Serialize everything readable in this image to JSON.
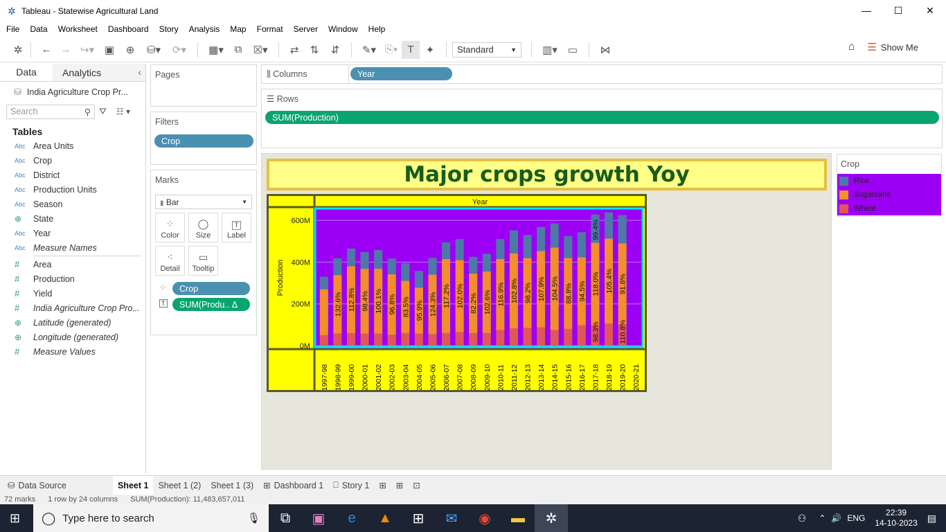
{
  "window": {
    "title": "Tableau - Statewise Agricultural Land"
  },
  "menu": [
    "File",
    "Data",
    "Worksheet",
    "Dashboard",
    "Story",
    "Analysis",
    "Map",
    "Format",
    "Server",
    "Window",
    "Help"
  ],
  "toolbar": {
    "fit_select": "Standard",
    "show_me": "Show Me"
  },
  "datapane": {
    "tabs": [
      "Data",
      "Analytics"
    ],
    "datasource": "India Agriculture Crop Pr...",
    "search_placeholder": "Search",
    "tables_heading": "Tables",
    "dimensions": [
      {
        "type": "Abc",
        "name": "Area Units"
      },
      {
        "type": "Abc",
        "name": "Crop"
      },
      {
        "type": "Abc",
        "name": "District"
      },
      {
        "type": "Abc",
        "name": "Production Units"
      },
      {
        "type": "Abc",
        "name": "Season"
      },
      {
        "type": "globe",
        "name": "State"
      },
      {
        "type": "Abc",
        "name": "Year"
      },
      {
        "type": "Abc",
        "name": "Measure Names"
      }
    ],
    "measures": [
      {
        "type": "#",
        "name": "Area"
      },
      {
        "type": "#",
        "name": "Production"
      },
      {
        "type": "#",
        "name": "Yield"
      },
      {
        "type": "#",
        "name": "India Agriculture Crop Pro..."
      },
      {
        "type": "globe",
        "name": "Latitude (generated)"
      },
      {
        "type": "globe",
        "name": "Longitude (generated)"
      },
      {
        "type": "#",
        "name": "Measure Values"
      }
    ]
  },
  "cards": {
    "pages": "Pages",
    "filters": "Filters",
    "filter_pill": "Crop",
    "marks": "Marks",
    "mark_type": "Bar",
    "mark_buttons": [
      "Color",
      "Size",
      "Label",
      "Detail",
      "Tooltip"
    ],
    "mark_pills": [
      "Crop",
      "SUM(Produ.. Δ"
    ]
  },
  "shelves": {
    "columns_label": "Columns",
    "columns_pill": "Year",
    "rows_label": "Rows",
    "rows_pill": "SUM(Production)"
  },
  "legend": {
    "title": "Crop",
    "items": [
      {
        "name": "Rice",
        "color": "#4e79a7"
      },
      {
        "name": "Sugarcane",
        "color": "#f28e2b"
      },
      {
        "name": "Wheat",
        "color": "#e15759"
      }
    ]
  },
  "colors": {
    "plot_bg": "#9b00f5",
    "frame_bg": "#ffff00",
    "plot_border": "#00e5ff",
    "title_color": "#1a5c1a"
  },
  "chart_data": {
    "type": "bar",
    "title": "Major crops growth Yoy",
    "xlabel": "Year",
    "ylabel": "Production",
    "ylim": [
      0,
      650
    ],
    "yticks": [
      "0M",
      "200M",
      "400M",
      "600M"
    ],
    "categories": [
      "1997-98",
      "1998-99",
      "1999-00",
      "2000-01",
      "2001-02",
      "2002-03",
      "2003-04",
      "2004-05",
      "2005-06",
      "2006-07",
      "2007-08",
      "2008-09",
      "2009-10",
      "2010-11",
      "2011-12",
      "2012-13",
      "2013-14",
      "2014-15",
      "2015-16",
      "2016-17",
      "2017-18",
      "2018-19",
      "2019-20",
      "2020-21"
    ],
    "series": [
      {
        "name": "Wheat",
        "values": [
          50,
          58,
          60,
          58,
          58,
          52,
          60,
          58,
          55,
          60,
          65,
          60,
          60,
          75,
          82,
          85,
          88,
          75,
          80,
          98,
          98,
          105,
          100,
          0
        ]
      },
      {
        "name": "Sugarcane",
        "values": [
          220,
          280,
          320,
          310,
          310,
          290,
          250,
          220,
          285,
          355,
          345,
          285,
          295,
          340,
          360,
          335,
          365,
          395,
          340,
          325,
          395,
          408,
          390,
          0
        ]
      },
      {
        "name": "Rice",
        "values": [
          60,
          80,
          85,
          80,
          90,
          75,
          85,
          80,
          80,
          80,
          100,
          80,
          85,
          95,
          110,
          110,
          115,
          115,
          105,
          120,
          135,
          125,
          135,
          0
        ]
      }
    ],
    "labels": [
      "",
      "132.6%",
      "112.8%",
      "98.4%",
      "100.1%",
      "96.8%",
      "83.5%",
      "95.9%",
      "124.3%",
      "117.2%",
      "102.0%",
      "82.2%",
      "102.6%",
      "116.9%",
      "102.8%",
      "98.2%",
      "107.9%",
      "104.5%",
      "88.8%",
      "94.5%",
      "118.0%",
      "105.4%",
      "91.8%",
      ""
    ],
    "top_labels": {
      "20": "99.4%"
    },
    "bottom_labels": {
      "20": "98.3%",
      "22": "110.8%"
    }
  },
  "sheet_tabs": [
    "Data Source",
    "Sheet 1",
    "Sheet 1 (2)",
    "Sheet 1 (3)",
    "Dashboard 1",
    "Story 1"
  ],
  "status": [
    "72 marks",
    "1 row by 24 columns",
    "SUM(Production): 11,483,657,011"
  ],
  "taskbar": {
    "search": "Type here to search",
    "lang": "ENG",
    "time": "22:39",
    "date": "14-10-2023",
    "notif": "1"
  }
}
